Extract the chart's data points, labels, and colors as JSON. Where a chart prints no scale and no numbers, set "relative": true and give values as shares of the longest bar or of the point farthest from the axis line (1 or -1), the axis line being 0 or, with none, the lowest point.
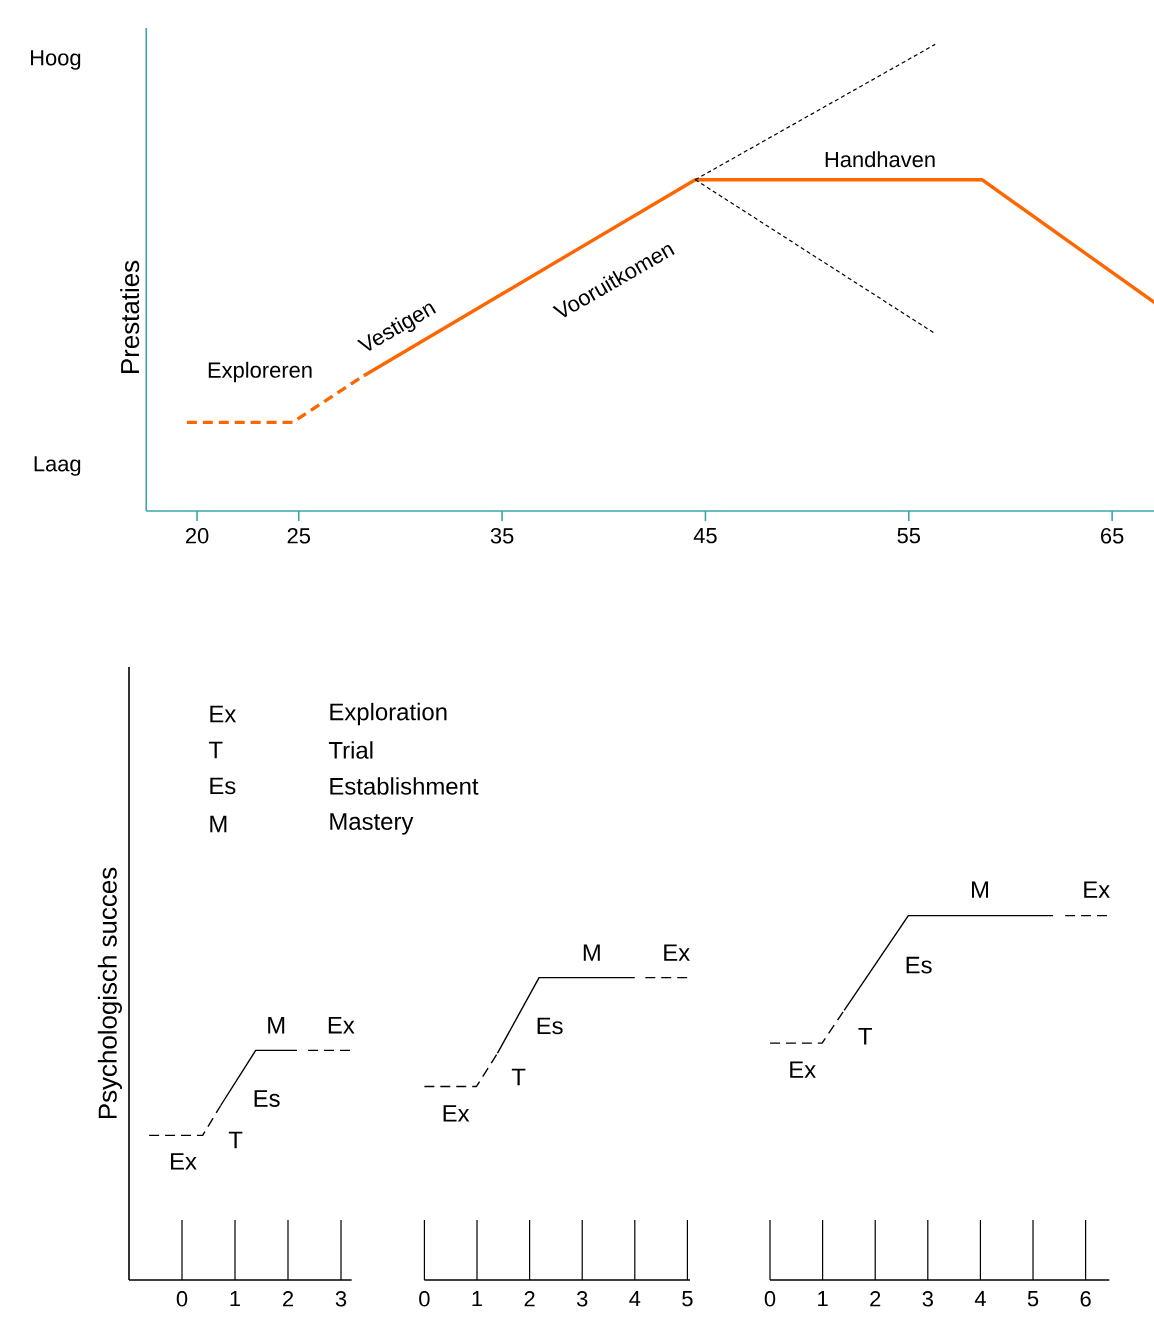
{
  "chart_data": [
    {
      "type": "line",
      "relative": true,
      "ylabel": "Prestaties",
      "xlim": [
        17.5,
        67.5
      ],
      "xticks": [
        20,
        25,
        35,
        45,
        55,
        65
      ],
      "series": [
        {
          "color": "#ff6600",
          "line_style": "dashed",
          "x": [
            19.5,
            24.7,
            28.2
          ],
          "values": [
            0.19,
            0.19,
            0.29
          ]
        },
        {
          "color": "#ff6600",
          "line_style": "solid",
          "x": [
            28.2,
            44.5,
            58.6,
            67.3
          ],
          "values": [
            0.29,
            0.71,
            0.71,
            0.44
          ]
        },
        {
          "color": "#000000",
          "line_style": "dotted",
          "x": [
            44.5,
            56.3
          ],
          "values": [
            0.71,
            1
          ]
        },
        {
          "color": "#000000",
          "line_style": "dotted",
          "x": [
            44.5,
            56.3
          ],
          "values": [
            0.71,
            0.38
          ]
        }
      ],
      "annotations": [
        "Hoog",
        "Laag",
        "Exploreren",
        "Vestigen",
        "Vooruitkomen",
        "Handhaven"
      ]
    },
    {
      "type": "line",
      "relative": true,
      "tick_labels": "x",
      "ylabel": "Psychologisch succes",
      "xlim": [
        -1,
        3.2
      ],
      "xticks": [
        0,
        1,
        2,
        3
      ],
      "series": [
        {
          "color": "#000000",
          "line_style": "dashed",
          "x": [
            -0.62,
            0.39,
            0.73
          ],
          "values": [
            0.63,
            0.63,
            0.76
          ]
        },
        {
          "color": "#000000",
          "line_style": "solid",
          "x": [
            0.73,
            1.39,
            2.17
          ],
          "values": [
            0.76,
            1,
            1
          ]
        },
        {
          "color": "#000000",
          "line_style": "dashed",
          "x": [
            2.38,
            3.18
          ],
          "values": [
            1,
            1
          ]
        }
      ],
      "annotations": [
        "Ex",
        "Exploration",
        "T",
        "Trial",
        "Es",
        "Establishment",
        "M",
        "Mastery",
        "Ex",
        "T",
        "Es",
        "M",
        "Ex"
      ]
    },
    {
      "type": "line",
      "relative": true,
      "tick_labels": "x",
      "xlim": [
        0,
        5.05
      ],
      "xticks": [
        0,
        1,
        2,
        3,
        4,
        5
      ],
      "series": [
        {
          "color": "#000000",
          "line_style": "dashed",
          "x": [
            0,
            0.99,
            1.39
          ],
          "values": [
            0.64,
            0.64,
            0.75
          ]
        },
        {
          "color": "#000000",
          "line_style": "solid",
          "x": [
            1.39,
            2.18,
            4.0
          ],
          "values": [
            0.75,
            1,
            1
          ]
        },
        {
          "color": "#000000",
          "line_style": "dashed",
          "x": [
            4.2,
            5.03
          ],
          "values": [
            1,
            1
          ]
        }
      ],
      "annotations": [
        "Ex",
        "T",
        "Es",
        "M",
        "Ex"
      ]
    },
    {
      "type": "line",
      "relative": true,
      "tick_labels": "x",
      "xlim": [
        0,
        6.45
      ],
      "xticks": [
        0,
        1,
        2,
        3,
        4,
        5,
        6
      ],
      "series": [
        {
          "color": "#000000",
          "line_style": "dashed",
          "x": [
            0,
            0.99,
            1.41
          ],
          "values": [
            0.65,
            0.65,
            0.74
          ]
        },
        {
          "color": "#000000",
          "line_style": "solid",
          "x": [
            1.41,
            2.63,
            5.38
          ],
          "values": [
            0.74,
            1,
            1
          ]
        },
        {
          "color": "#000000",
          "line_style": "dashed",
          "x": [
            5.61,
            6.41
          ],
          "values": [
            1,
            1
          ]
        }
      ],
      "annotations": [
        "Ex",
        "T",
        "Es",
        "M",
        "Ex"
      ]
    }
  ]
}
